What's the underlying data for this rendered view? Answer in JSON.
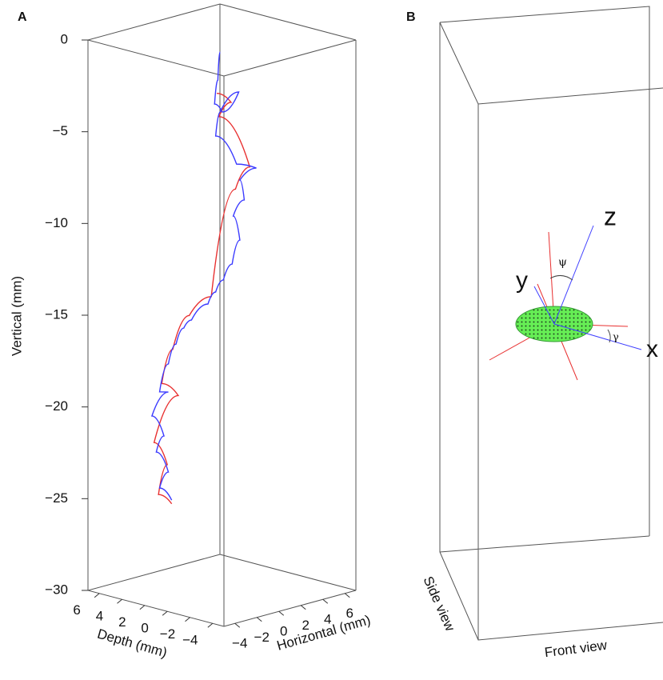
{
  "chart_data": {
    "type": "line3d",
    "label": "A",
    "xlabel": "Horizontal (mm)",
    "ylabel": "Depth (mm)",
    "zlabel": "Vertical (mm)",
    "xlim": [
      -5,
      7
    ],
    "ylim": [
      -5,
      7
    ],
    "zlim": [
      -30,
      0
    ],
    "xticks": [
      {
        "value": -4,
        "label": "−4"
      },
      {
        "value": -2,
        "label": "−2"
      },
      0,
      2,
      4,
      6
    ],
    "yticks": [
      6,
      4,
      2,
      0,
      {
        "value": -2,
        "label": "−2"
      },
      {
        "value": -4,
        "label": "−4"
      }
    ],
    "zticks": [
      0,
      {
        "value": -5,
        "label": "−5"
      },
      {
        "value": -10,
        "label": "−10"
      },
      {
        "value": -15,
        "label": "−15"
      },
      {
        "value": -20,
        "label": "−20"
      },
      {
        "value": -25,
        "label": "−25"
      },
      {
        "value": -30,
        "label": "−30"
      }
    ],
    "series": [
      {
        "color": "#e83030",
        "x": [
          -0.5,
          0.8,
          -0.3,
          2.5,
          1.2,
          -1.0,
          -3.0,
          -4.5,
          -5.5,
          -4.0,
          -6.2,
          -5.0,
          -5.8,
          -4.6
        ],
        "z": [
          -2.5,
          -3.2,
          -3.8,
          -7.0,
          -8.0,
          -13.5,
          -14.2,
          -15.8,
          -17.5,
          -18.4,
          -20.6,
          -22.0,
          -23.5,
          -24.2
        ]
      },
      {
        "color": "#3a3aff",
        "x": [
          -0.2,
          -0.4,
          -0.7,
          0,
          1.5,
          -0.2,
          -0.6,
          1.3,
          3.1,
          1.6,
          2.0,
          1.0,
          1.6,
          0.9,
          0.1,
          -0.6,
          -1.3,
          -2.8,
          -3.5,
          -4.2,
          -4.9,
          -5.7,
          -4.9,
          -6.4,
          -5.3,
          -6.0,
          -4.9,
          -5.7,
          -4.6
        ],
        "z": [
          -0.29,
          -1.79,
          -3.05,
          -3.6,
          -2.75,
          -3.57,
          -4.81,
          -6.65,
          -7.16,
          -7.57,
          -8.72,
          -9.43,
          -10.84,
          -12.03,
          -12.77,
          -13.31,
          -13.85,
          -14.48,
          -14.8,
          -15.56,
          -16.53,
          -17.92,
          -18.06,
          -19.12,
          -20.39,
          -21.15,
          -22.42,
          -23.16,
          -24.0
        ]
      }
    ]
  },
  "panel_b": {
    "label": "B",
    "x_label": "x",
    "y_label": "y",
    "z_label": "z",
    "psi": "ψ",
    "gamma": "γ",
    "side_view": "Side view",
    "front_view": "Front view"
  }
}
